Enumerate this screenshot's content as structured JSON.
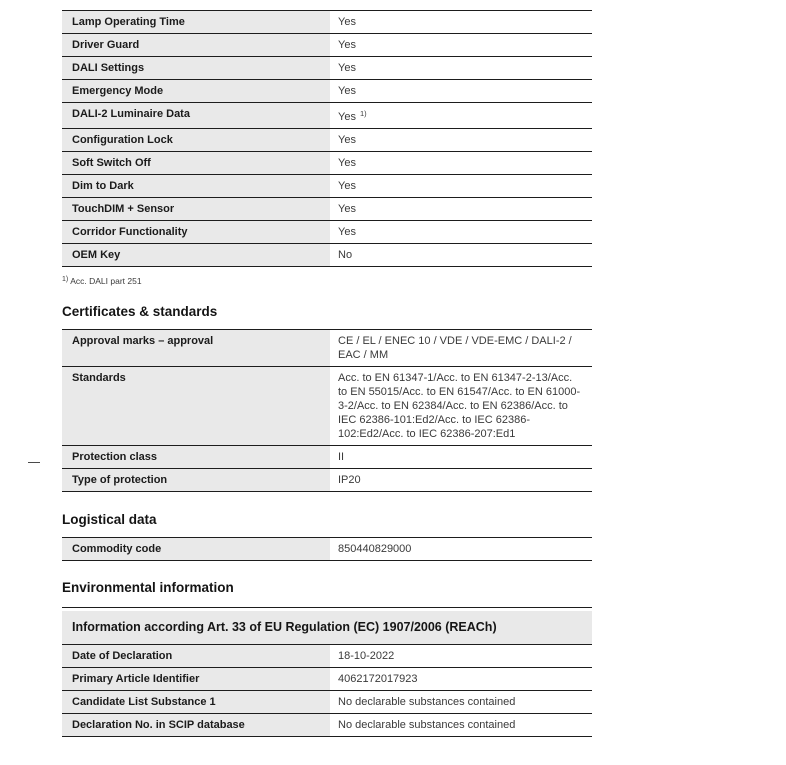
{
  "colors": {
    "label_cell_bg": "#e9e9e9",
    "rule_line": "#1d1d1d",
    "label_text": "#1b1b1b",
    "value_text": "#3a3a3a"
  },
  "features_table": {
    "rows": [
      {
        "label": "Lamp Operating Time",
        "value": "Yes"
      },
      {
        "label": "Driver Guard",
        "value": "Yes"
      },
      {
        "label": "DALI Settings",
        "value": "Yes"
      },
      {
        "label": "Emergency Mode",
        "value": "Yes"
      },
      {
        "label": "DALI-2 Luminaire Data",
        "value": "Yes",
        "sup": "1)"
      },
      {
        "label": "Configuration Lock",
        "value": "Yes"
      },
      {
        "label": "Soft Switch Off",
        "value": "Yes"
      },
      {
        "label": "Dim to Dark",
        "value": "Yes"
      },
      {
        "label": "TouchDIM + Sensor",
        "value": "Yes"
      },
      {
        "label": "Corridor Functionality",
        "value": "Yes"
      },
      {
        "label": "OEM Key",
        "value": "No"
      }
    ],
    "footnote_marker": "1)",
    "footnote_text": "Acc. DALI part 251"
  },
  "certificates": {
    "heading": "Certificates & standards",
    "rows": [
      {
        "label": "Approval marks – approval",
        "value": "CE / EL / ENEC 10 / VDE / VDE-EMC / DALI-2 / EAC / MM"
      },
      {
        "label": "Standards",
        "value": "Acc. to EN 61347-1/Acc. to EN 61347-2-13/Acc. to EN 55015/Acc. to EN 61547/Acc. to EN 61000-3-2/Acc. to EN 62384/Acc. to EN 62386/Acc. to IEC 62386-101:Ed2/Acc. to IEC 62386-102:Ed2/Acc. to IEC 62386-207:Ed1"
      },
      {
        "label": "Protection class",
        "value": "II"
      },
      {
        "label": "Type of protection",
        "value": "IP20"
      }
    ]
  },
  "logistical": {
    "heading": "Logistical data",
    "rows": [
      {
        "label": "Commodity code",
        "value": "850440829000"
      }
    ]
  },
  "environmental": {
    "heading": "Environmental information",
    "header_band": "Information according Art. 33 of EU Regulation (EC) 1907/2006 (REACh)",
    "rows": [
      {
        "label": "Date of Declaration",
        "value": "18-10-2022"
      },
      {
        "label": "Primary Article Identifier",
        "value": "4062172017923"
      },
      {
        "label": "Candidate List Substance 1",
        "value": "No declarable substances contained"
      },
      {
        "label": "Declaration No. in SCIP database",
        "value": "No declarable substances contained"
      }
    ]
  }
}
